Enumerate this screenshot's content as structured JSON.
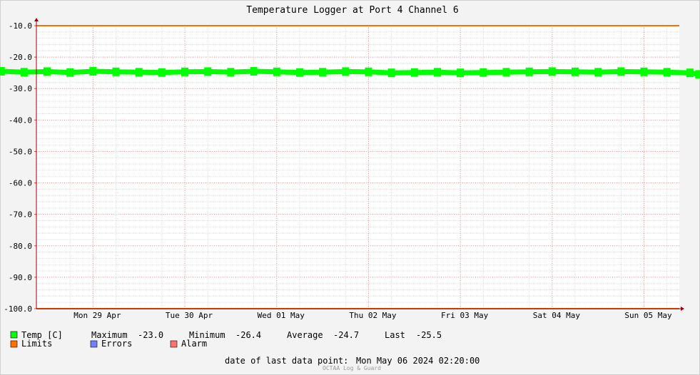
{
  "chart_data": {
    "type": "line",
    "title": "Temperature Logger at Port 4 Channel 6",
    "ylim": [
      -100.0,
      -10.0
    ],
    "y_ticks": [
      "-10.0",
      "-20.0",
      "-30.0",
      "-40.0",
      "-50.0",
      "-60.0",
      "-70.0",
      "-80.0",
      "-90.0",
      "-100.0"
    ],
    "x_tick_labels": [
      "Mon 29 Apr",
      "Tue 30 Apr",
      "Wed 01 May",
      "Thu 02 May",
      "Fri 03 May",
      "Sat 04 May",
      "Sun 05 May"
    ],
    "series": [
      {
        "name": "Temp [C]",
        "color": "#00ff00",
        "x": [
          "2024-04-28 12:00",
          "2024-04-28 18:00",
          "2024-04-29 00:00",
          "2024-04-29 06:00",
          "2024-04-29 12:00",
          "2024-04-29 18:00",
          "2024-04-30 00:00",
          "2024-04-30 06:00",
          "2024-04-30 12:00",
          "2024-04-30 18:00",
          "2024-05-01 00:00",
          "2024-05-01 06:00",
          "2024-05-01 12:00",
          "2024-05-01 18:00",
          "2024-05-02 00:00",
          "2024-05-02 06:00",
          "2024-05-02 12:00",
          "2024-05-02 18:00",
          "2024-05-03 00:00",
          "2024-05-03 06:00",
          "2024-05-03 12:00",
          "2024-05-03 18:00",
          "2024-05-04 00:00",
          "2024-05-04 06:00",
          "2024-05-04 12:00",
          "2024-05-04 18:00",
          "2024-05-05 00:00",
          "2024-05-05 06:00",
          "2024-05-05 12:00",
          "2024-05-05 18:00",
          "2024-05-06 00:00",
          "2024-05-06 02:20"
        ],
        "values": [
          -24.5,
          -24.8,
          -24.6,
          -24.9,
          -24.5,
          -24.7,
          -24.8,
          -24.9,
          -24.7,
          -24.6,
          -24.8,
          -24.5,
          -24.7,
          -24.9,
          -24.8,
          -24.6,
          -24.7,
          -25.0,
          -24.9,
          -24.8,
          -25.0,
          -24.9,
          -24.8,
          -24.7,
          -24.6,
          -24.7,
          -24.8,
          -24.6,
          -24.7,
          -24.8,
          -25.0,
          -25.5
        ]
      },
      {
        "name": "Limits",
        "color": "#ff7000",
        "values": [
          -10.0,
          -100.0
        ]
      },
      {
        "name": "Errors",
        "color": "#7080ff",
        "values": []
      },
      {
        "name": "Alarm",
        "color": "#ff7070",
        "values": []
      }
    ],
    "stats": {
      "maximum_label": "Maximum",
      "maximum": "-23.0",
      "minimum_label": "Minimum",
      "minimum": "-26.4",
      "average_label": "Average",
      "average": "-24.7",
      "last_label": "Last",
      "last": "-25.5"
    },
    "last_data_point_label": "date of last data point:",
    "last_data_point": "Mon May 06 2024 02:20:00",
    "footer": "OCTAA Log & Guard"
  }
}
